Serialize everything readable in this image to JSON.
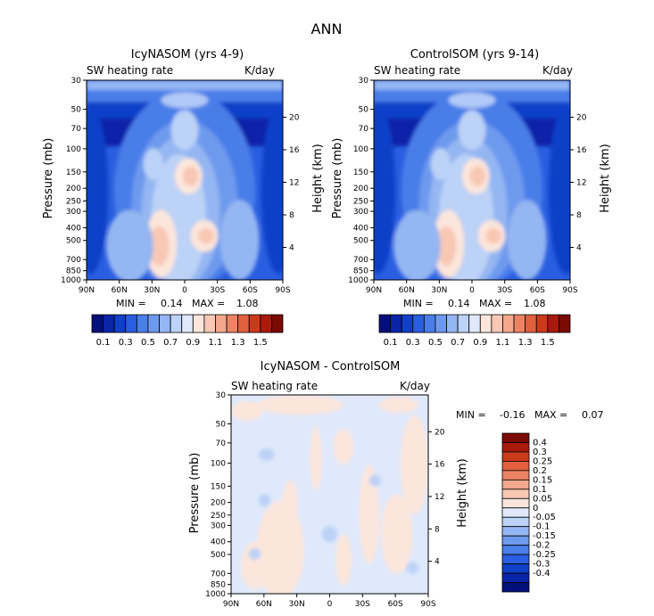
{
  "main_title": "ANN",
  "colors": {
    "panel_top_scale": [
      "#04107a",
      "#0a24a8",
      "#1040c8",
      "#2a5ee0",
      "#4a7ee8",
      "#6e9aee",
      "#94b6f2",
      "#bcd2f7",
      "#dfe9fb",
      "#fce6dc",
      "#f8c8b4",
      "#f3a88e",
      "#ec8464",
      "#e2603e",
      "#cc3a1c",
      "#a81a0c",
      "#7a0a04"
    ],
    "panel_diff_scale": [
      "#04107a",
      "#0a24a8",
      "#1040c8",
      "#2a5ee0",
      "#4a7ee8",
      "#6e9aee",
      "#94b6f2",
      "#bcd2f7",
      "#dfe9fb",
      "#fce6dc",
      "#f8c8b4",
      "#f3a88e",
      "#ec8464",
      "#e2603e",
      "#cc3a1c",
      "#a81a0c",
      "#7a0a04"
    ]
  },
  "chart_data": [
    {
      "type": "heatmap",
      "title": "IcyNASOM (yrs 4-9)",
      "left_label": "SW heating rate",
      "right_label": "K/day",
      "xlabel": "",
      "ylabel": "Pressure (mb)",
      "ylabel_right": "Height (km)",
      "x_ticks": [
        "90N",
        "60N",
        "30N",
        "0",
        "30S",
        "60S",
        "90S"
      ],
      "y_ticks": [
        "30",
        "50",
        "70",
        "100",
        "150",
        "200",
        "250",
        "300",
        "400",
        "500",
        "700",
        "850",
        "1000"
      ],
      "height_ticks": [
        "20",
        "16",
        "12",
        "8",
        "4"
      ],
      "min_label": "MIN =",
      "min_value": "0.14",
      "max_label": "MAX =",
      "max_value": "1.08",
      "colorbar_labels": [
        "0.1",
        "0.3",
        "0.5",
        "0.7",
        "0.9",
        "1.1",
        "1.3",
        "1.5"
      ]
    },
    {
      "type": "heatmap",
      "title": "ControlSOM (yrs 9-14)",
      "left_label": "SW heating rate",
      "right_label": "K/day",
      "xlabel": "",
      "ylabel": "Pressure (mb)",
      "ylabel_right": "Height (km)",
      "x_ticks": [
        "90N",
        "60N",
        "30N",
        "0",
        "30S",
        "60S",
        "90S"
      ],
      "y_ticks": [
        "30",
        "50",
        "70",
        "100",
        "150",
        "200",
        "250",
        "300",
        "400",
        "500",
        "700",
        "850",
        "1000"
      ],
      "height_ticks": [
        "20",
        "16",
        "12",
        "8",
        "4"
      ],
      "min_label": "MIN =",
      "min_value": "0.14",
      "max_label": "MAX =",
      "max_value": "1.08",
      "colorbar_labels": [
        "0.1",
        "0.3",
        "0.5",
        "0.7",
        "0.9",
        "1.1",
        "1.3",
        "1.5"
      ]
    },
    {
      "type": "heatmap",
      "title": "IcyNASOM - ControlSOM",
      "left_label": "SW heating rate",
      "right_label": "K/day",
      "xlabel": "",
      "ylabel": "Pressure (mb)",
      "ylabel_right": "Height (km)",
      "x_ticks": [
        "90N",
        "60N",
        "30N",
        "0",
        "30S",
        "60S",
        "90S"
      ],
      "y_ticks": [
        "30",
        "50",
        "70",
        "100",
        "150",
        "200",
        "250",
        "300",
        "400",
        "500",
        "700",
        "850",
        "1000"
      ],
      "height_ticks": [
        "20",
        "16",
        "12",
        "8",
        "4"
      ],
      "min_label": "MIN =",
      "min_value": "-0.16",
      "max_label": "MAX =",
      "max_value": "0.07",
      "colorbar_labels": [
        "0.4",
        "0.3",
        "0.25",
        "0.2",
        "0.15",
        "0.1",
        "0.05",
        "0",
        "-0.05",
        "-0.1",
        "-0.15",
        "-0.2",
        "-0.25",
        "-0.3",
        "-0.4"
      ]
    }
  ]
}
